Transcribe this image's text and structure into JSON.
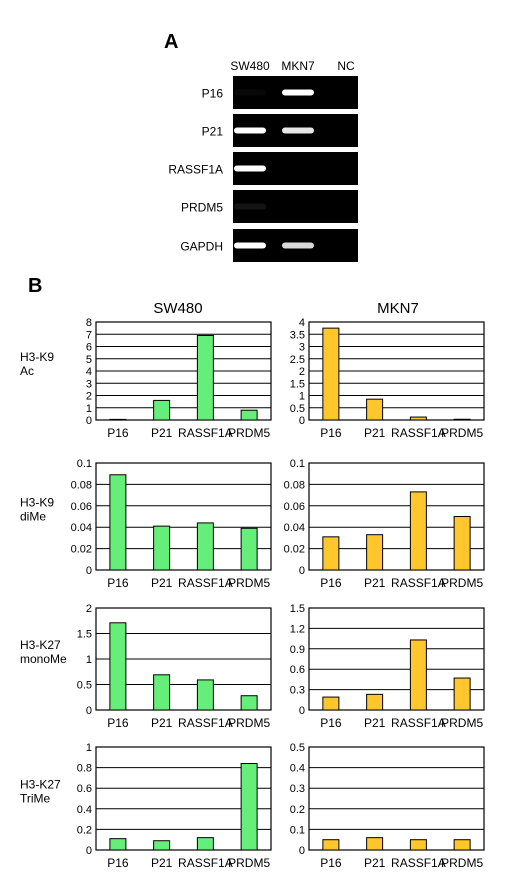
{
  "panel_a": {
    "label": "A",
    "lanes": [
      "SW480",
      "MKN7",
      "NC"
    ],
    "genes": [
      "P16",
      "P21",
      "RASSF1A",
      "PRDM5",
      "GAPDH"
    ],
    "band_intensity": [
      [
        0.03,
        1.0,
        0
      ],
      [
        1.0,
        0.9,
        0
      ],
      [
        1.0,
        0,
        0
      ],
      [
        0.08,
        0,
        0
      ],
      [
        1.0,
        0.85,
        0
      ]
    ]
  },
  "panel_b": {
    "label": "B",
    "col_titles": [
      "SW480",
      "MKN7"
    ],
    "colors": {
      "SW480": "#66ee7a",
      "MKN7": "#ffc72c"
    },
    "row_labels": [
      [
        "H3-K9",
        "Ac"
      ],
      [
        "H3-K9",
        "diMe"
      ],
      [
        "H3-K27",
        "monoMe"
      ],
      [
        "H3-K27",
        "TriMe"
      ]
    ]
  },
  "chart_data": [
    {
      "type": "bar",
      "categories": [
        "P16",
        "P21",
        "RASSF1A",
        "PRDM5"
      ],
      "values": [
        0.05,
        1.6,
        6.9,
        0.8
      ],
      "ylim": [
        0,
        8
      ],
      "yticks": [
        0,
        1,
        2,
        3,
        4,
        5,
        6,
        7,
        8
      ],
      "ytick_labels": [
        "0",
        "1",
        "2",
        "3",
        "4",
        "5",
        "6",
        "7",
        "8"
      ],
      "color": "#66ee7a"
    },
    {
      "type": "bar",
      "categories": [
        "P16",
        "P21",
        "RASSF1A",
        "PRDM5"
      ],
      "values": [
        3.75,
        0.85,
        0.12,
        0.03
      ],
      "ylim": [
        0,
        4
      ],
      "yticks": [
        0,
        0.5,
        1,
        1.5,
        2,
        2.5,
        3,
        3.5,
        4
      ],
      "ytick_labels": [
        "0",
        "0.5",
        "1",
        "1.5",
        "2",
        "2.5",
        "3",
        "3.5",
        "4"
      ],
      "color": "#ffc72c"
    },
    {
      "type": "bar",
      "categories": [
        "P16",
        "P21",
        "RASSF1A",
        "PRDM5"
      ],
      "values": [
        0.089,
        0.041,
        0.044,
        0.039
      ],
      "ylim": [
        0,
        0.1
      ],
      "yticks": [
        0,
        0.02,
        0.04,
        0.06,
        0.08,
        0.1
      ],
      "ytick_labels": [
        "0",
        "0.02",
        "0.04",
        "0.06",
        "0.08",
        "0.1"
      ],
      "color": "#66ee7a"
    },
    {
      "type": "bar",
      "categories": [
        "P16",
        "P21",
        "RASSF1A",
        "PRDM5"
      ],
      "values": [
        0.031,
        0.033,
        0.073,
        0.05
      ],
      "ylim": [
        0,
        0.1
      ],
      "yticks": [
        0,
        0.02,
        0.04,
        0.06,
        0.08,
        0.1
      ],
      "ytick_labels": [
        "0",
        "0.02",
        "0.04",
        "0.06",
        "0.08",
        "0.1"
      ],
      "color": "#ffc72c"
    },
    {
      "type": "bar",
      "categories": [
        "P16",
        "P21",
        "RASSF1A",
        "PRDM5"
      ],
      "values": [
        1.71,
        0.69,
        0.59,
        0.28
      ],
      "ylim": [
        0,
        2
      ],
      "yticks": [
        0,
        0.5,
        1,
        1.5,
        2
      ],
      "ytick_labels": [
        "0",
        "0.5",
        "1",
        "1.5",
        "2"
      ],
      "color": "#66ee7a"
    },
    {
      "type": "bar",
      "categories": [
        "P16",
        "P21",
        "RASSF1A",
        "PRDM5"
      ],
      "values": [
        0.19,
        0.23,
        1.03,
        0.47
      ],
      "ylim": [
        0,
        1.5
      ],
      "yticks": [
        0,
        0.3,
        0.6,
        0.9,
        1.2,
        1.5
      ],
      "ytick_labels": [
        "0",
        "0.3",
        "0.6",
        "0.9",
        "1.2",
        "1.5"
      ],
      "color": "#ffc72c"
    },
    {
      "type": "bar",
      "categories": [
        "P16",
        "P21",
        "RASSF1A",
        "PRDM5"
      ],
      "values": [
        0.11,
        0.09,
        0.12,
        0.84
      ],
      "ylim": [
        0,
        1
      ],
      "yticks": [
        0,
        0.2,
        0.4,
        0.6,
        0.8,
        1
      ],
      "ytick_labels": [
        "0",
        "0.2",
        "0.4",
        "0.6",
        "0.8",
        "1"
      ],
      "color": "#66ee7a"
    },
    {
      "type": "bar",
      "categories": [
        "P16",
        "P21",
        "RASSF1A",
        "PRDM5"
      ],
      "values": [
        0.05,
        0.06,
        0.05,
        0.05
      ],
      "ylim": [
        0,
        0.5
      ],
      "yticks": [
        0,
        0.1,
        0.2,
        0.3,
        0.4,
        0.5
      ],
      "ytick_labels": [
        "0",
        "0.1",
        "0.2",
        "0.3",
        "0.4",
        "0.5"
      ],
      "color": "#ffc72c"
    }
  ]
}
